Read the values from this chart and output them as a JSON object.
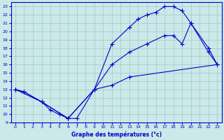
{
  "title": "Graphe des températures (°c)",
  "bg_color": "#cce8e8",
  "grid_color": "#99cccc",
  "line_color": "#0000cc",
  "xlim": [
    -0.5,
    23.5
  ],
  "ylim": [
    9,
    23.5
  ],
  "xticks": [
    0,
    1,
    2,
    3,
    4,
    5,
    6,
    7,
    8,
    9,
    10,
    11,
    12,
    13,
    14,
    15,
    16,
    17,
    18,
    19,
    20,
    21,
    22,
    23
  ],
  "yticks": [
    9,
    10,
    11,
    12,
    13,
    14,
    15,
    16,
    17,
    18,
    19,
    20,
    21,
    22,
    23
  ],
  "line_top": {
    "x": [
      0,
      1,
      3,
      6,
      9,
      11,
      13,
      14,
      15,
      16,
      17,
      18,
      19,
      20,
      22,
      23
    ],
    "y": [
      13,
      12.7,
      11.5,
      9.5,
      13.0,
      18.5,
      20.5,
      21.5,
      22.0,
      22.3,
      23.0,
      23.0,
      22.5,
      21.0,
      17.5,
      16.0
    ]
  },
  "line_bottom": {
    "x": [
      0,
      1,
      3,
      4,
      5,
      6,
      7,
      9,
      11,
      13,
      23
    ],
    "y": [
      13,
      12.7,
      11.5,
      10.5,
      10.0,
      9.5,
      9.5,
      13.0,
      13.5,
      14.5,
      16.0
    ]
  },
  "line_mid": {
    "x": [
      0,
      3,
      6,
      9,
      11,
      13,
      15,
      17,
      18,
      19,
      20,
      22,
      23
    ],
    "y": [
      13,
      11.5,
      9.5,
      13.0,
      16.0,
      17.5,
      18.5,
      19.5,
      19.5,
      18.5,
      21.0,
      18.0,
      16.0
    ]
  }
}
